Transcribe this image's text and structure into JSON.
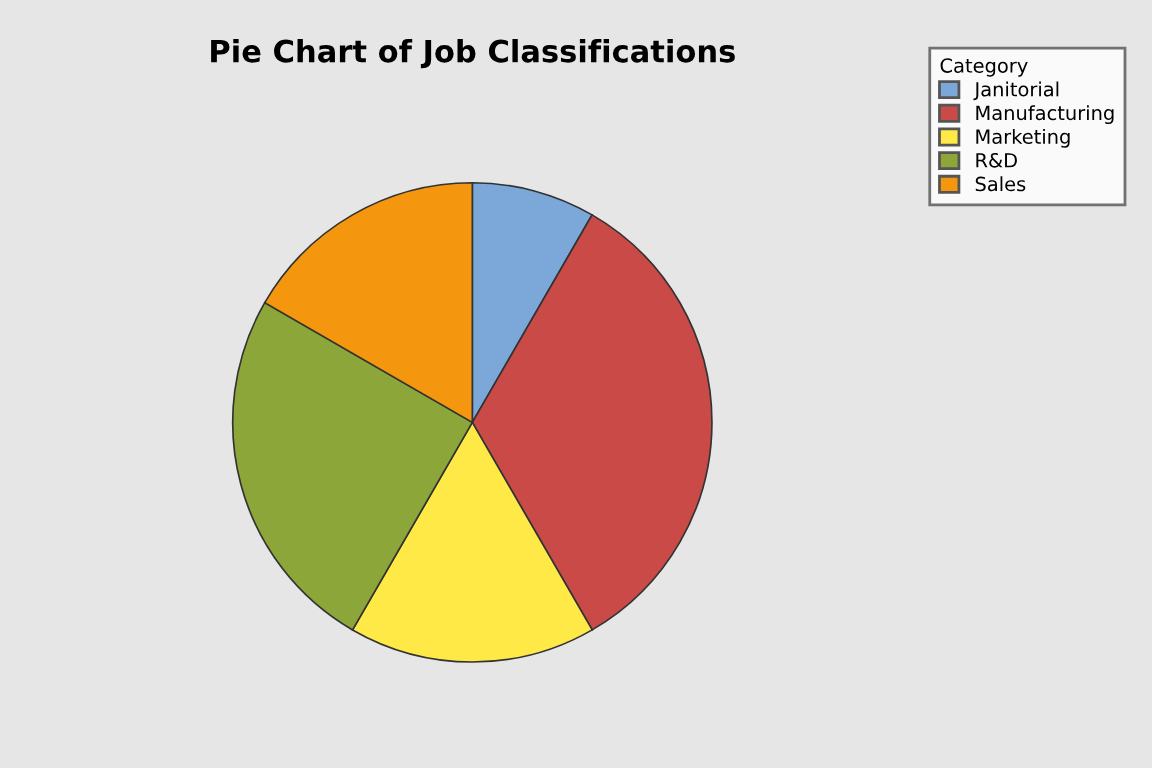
{
  "chart_data": {
    "type": "pie",
    "title": "Pie Chart of Job Classifications",
    "legend_title": "Category",
    "categories": [
      "Janitorial",
      "Manufacturing",
      "Marketing",
      "R&D",
      "Sales"
    ],
    "values": [
      8.33,
      33.33,
      16.67,
      25,
      16.67
    ],
    "colors": [
      "#7ba7d9",
      "#c94a47",
      "#ffe946",
      "#8ca63a",
      "#f5960f"
    ],
    "legend": "top right"
  }
}
